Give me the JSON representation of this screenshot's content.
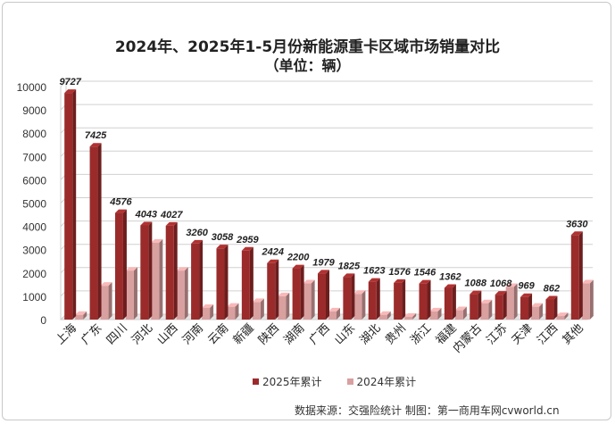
{
  "title_line1": "2024年、2025年1-5月份新能源重卡区域市场销量对比",
  "title_line2": "（单位：辆）",
  "source_text": "数据来源：交强险统计  制图：第一商用车网cvworld.cn",
  "colors": {
    "series_2025": "#9b2b2b",
    "series_2024": "#d9a0a0",
    "label": "#222222"
  },
  "chart_data": {
    "type": "bar",
    "categories": [
      "上海",
      "广东",
      "四川",
      "河北",
      "山西",
      "河南",
      "云南",
      "新疆",
      "陕西",
      "湖南",
      "广西",
      "山东",
      "湖北",
      "贵州",
      "浙江",
      "福建",
      "内蒙古",
      "江苏",
      "天津",
      "江西",
      "其他"
    ],
    "series": [
      {
        "name": "2025年累计",
        "values": [
          9727,
          7425,
          4576,
          4043,
          4027,
          3260,
          3058,
          2959,
          2424,
          2200,
          1979,
          1825,
          1623,
          1576,
          1546,
          1362,
          1088,
          1068,
          969,
          862,
          3630
        ]
      },
      {
        "name": "2024年累计",
        "values": [
          200,
          1450,
          2100,
          3300,
          2100,
          500,
          550,
          750,
          1000,
          1550,
          350,
          1100,
          200,
          120,
          350,
          400,
          700,
          1400,
          550,
          150,
          1550
        ]
      }
    ],
    "yticks": [
      0,
      1000,
      2000,
      3000,
      4000,
      5000,
      6000,
      7000,
      8000,
      9000,
      10000
    ],
    "ylim": [
      0,
      10000
    ],
    "legend_position": "bottom",
    "data_labels_series": "2025年累计"
  }
}
